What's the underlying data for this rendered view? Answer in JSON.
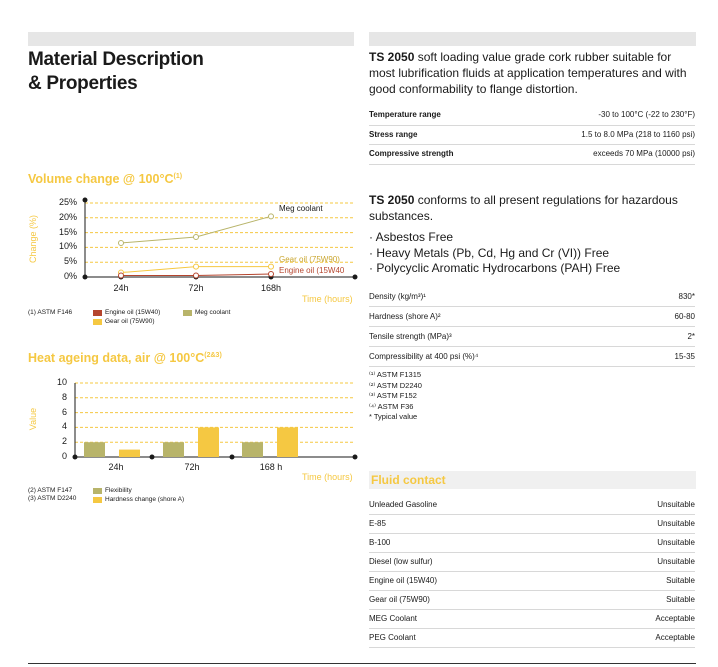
{
  "left": {
    "title_line1": "Material Description",
    "title_line2": "& Properties"
  },
  "volume_chart": {
    "title": "Volume change @ 100°C",
    "title_ref": "(1)",
    "ylabel": "Change (%)",
    "xlabel": "Time (hours)",
    "yticks": [
      "25%",
      "20%",
      "15%",
      "10%",
      "5%",
      "0%"
    ],
    "xticks": [
      "24h",
      "72h",
      "168h"
    ],
    "series_labels": {
      "meg": "Meg coolant",
      "gear": "Gear oil (75W90)",
      "engine": "Engine oil (15W40"
    },
    "footnote": "(1) ASTM F146",
    "legend": [
      {
        "label": "Engine oil (15W40)",
        "color": "#b5452e"
      },
      {
        "label": "Meg coolant",
        "color": "#b8b46a"
      },
      {
        "label": "Gear oil (75W90)",
        "color": "#f5c842"
      }
    ]
  },
  "ageing_chart": {
    "title": "Heat ageing data, air @ 100°C",
    "title_ref": "(2&3)",
    "ylabel": "Value",
    "xlabel": "Time (hours)",
    "yticks": [
      "10",
      "8",
      "6",
      "4",
      "2",
      "0"
    ],
    "xticks": [
      "24h",
      "72h",
      "168 h"
    ],
    "footnotes": [
      "(2) ASTM F147",
      "(3) ASTM D2240"
    ],
    "legend": [
      {
        "label": "Flexibility",
        "color": "#b8b46a"
      },
      {
        "label": "Hardness change (shore A)",
        "color": "#f5c842"
      }
    ]
  },
  "chart_data": [
    {
      "type": "line",
      "title": "Volume change @ 100°C",
      "xlabel": "Time (hours)",
      "ylabel": "Change (%)",
      "categories": [
        "24h",
        "72h",
        "168h"
      ],
      "ylim": [
        0,
        25
      ],
      "series": [
        {
          "name": "Meg coolant",
          "values": [
            11.5,
            13.5,
            20.5
          ],
          "color": "#b8b46a"
        },
        {
          "name": "Gear oil (75W90)",
          "values": [
            1.5,
            3.5,
            3.5
          ],
          "color": "#f5c842"
        },
        {
          "name": "Engine oil (15W40)",
          "values": [
            0.5,
            0.5,
            1.0
          ],
          "color": "#b5452e"
        }
      ],
      "grid": true
    },
    {
      "type": "bar",
      "title": "Heat ageing data, air @ 100°C",
      "xlabel": "Time (hours)",
      "ylabel": "Value",
      "categories": [
        "24h",
        "72h",
        "168 h"
      ],
      "ylim": [
        0,
        10
      ],
      "series": [
        {
          "name": "Flexibility",
          "values": [
            2,
            2,
            2
          ],
          "color": "#b8b46a"
        },
        {
          "name": "Hardness change (shore A)",
          "values": [
            1,
            4,
            4
          ],
          "color": "#f5c842"
        }
      ],
      "grid": true
    }
  ],
  "right": {
    "intro_bold": "TS 2050",
    "intro_text": " soft loading value grade cork rubber suitable for most lubrification fluids at application temperatures and with good conformability to flange distortion.",
    "specs": [
      {
        "k": "Temperature range",
        "v": "-30 to 100°C (-22 to 230°F)"
      },
      {
        "k": "Stress range",
        "v": "1.5 to 8.0 MPa (218 to 1160 psi)"
      },
      {
        "k": "Compressive strength",
        "v": "exceeds 70 MPa (10000 psi)"
      }
    ],
    "conform_bold": "TS 2050",
    "conform_text": " conforms to all present regulations for hazardous substances.",
    "bullets": [
      "· Asbestos Free",
      "· Heavy Metals (Pb, Cd, Hg and Cr (VI)) Free",
      "· Polycyclic Aromatic Hydrocarbons (PAH) Free"
    ],
    "props": [
      {
        "k": "Density (kg/m³)¹",
        "v": "830*"
      },
      {
        "k": "Hardness (shore A)²",
        "v": "60-80"
      },
      {
        "k": "Tensile strength (MPa)³",
        "v": "2*"
      },
      {
        "k": "Compressibility at 400 psi (%)⁴",
        "v": "15-35"
      }
    ],
    "prop_notes": [
      "⁽¹⁾ ASTM F1315",
      "⁽²⁾ ASTM D2240",
      "⁽³⁾ ASTM F152",
      "⁽⁴⁾ ASTM F36",
      "*  Typical value"
    ],
    "fluid_title": "Fluid contact",
    "fluids": [
      {
        "k": "Unleaded Gasoline",
        "v": "Unsuitable"
      },
      {
        "k": "E-85",
        "v": "Unsuitable"
      },
      {
        "k": "B-100",
        "v": "Unsuitable"
      },
      {
        "k": "Diesel (low sulfur)",
        "v": "Unsuitable"
      },
      {
        "k": "Engine oil (15W40)",
        "v": "Suitable"
      },
      {
        "k": "Gear oil (75W90)",
        "v": "Suitable"
      },
      {
        "k": "MEG Coolant",
        "v": "Acceptable"
      },
      {
        "k": "PEG Coolant",
        "v": "Acceptable"
      }
    ]
  }
}
